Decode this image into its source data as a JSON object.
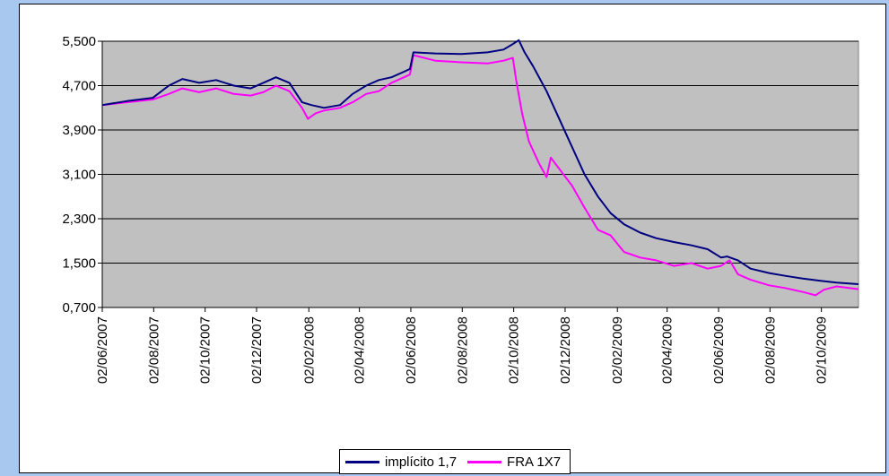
{
  "chart_data": {
    "type": "line",
    "title": "",
    "xlabel": "",
    "ylabel": "",
    "ylim": [
      0.7,
      5.5
    ],
    "yticks": [
      "5,500",
      "4,700",
      "3,900",
      "3,100",
      "2,300",
      "1,500",
      "0,700"
    ],
    "ytick_values": [
      5.5,
      4.7,
      3.9,
      3.1,
      2.3,
      1.5,
      0.7
    ],
    "xlim": [
      "2007-06-02",
      "2009-11-15"
    ],
    "xticks": [
      "02/06/2007",
      "02/08/2007",
      "02/10/2007",
      "02/12/2007",
      "02/02/2008",
      "02/04/2008",
      "02/06/2008",
      "02/08/2008",
      "02/10/2008",
      "02/12/2008",
      "02/02/2009",
      "02/04/2009",
      "02/06/2009",
      "02/08/2009",
      "02/10/2009"
    ],
    "xtick_dates": [
      "2007-06-02",
      "2007-08-02",
      "2007-10-02",
      "2007-12-02",
      "2008-02-02",
      "2008-04-02",
      "2008-06-02",
      "2008-08-02",
      "2008-10-02",
      "2008-12-02",
      "2009-02-02",
      "2009-04-02",
      "2009-06-02",
      "2009-08-02",
      "2009-10-02"
    ],
    "grid": "horizontal",
    "plot_background": "#c0c0c0",
    "legend_position": "bottom",
    "series": [
      {
        "name": "implícito 1,7",
        "color": "#000080",
        "x": [
          "2007-06-02",
          "2007-07-01",
          "2007-08-01",
          "2007-08-20",
          "2007-09-05",
          "2007-09-25",
          "2007-10-15",
          "2007-11-05",
          "2007-11-25",
          "2007-12-10",
          "2007-12-25",
          "2008-01-10",
          "2008-01-25",
          "2008-02-05",
          "2008-02-20",
          "2008-03-10",
          "2008-03-25",
          "2008-04-10",
          "2008-04-25",
          "2008-05-10",
          "2008-05-25",
          "2008-06-01",
          "2008-06-05",
          "2008-07-01",
          "2008-08-01",
          "2008-09-01",
          "2008-09-20",
          "2008-10-01",
          "2008-10-08",
          "2008-10-15",
          "2008-10-25",
          "2008-11-10",
          "2008-11-25",
          "2008-12-10",
          "2008-12-25",
          "2009-01-10",
          "2009-01-25",
          "2009-02-10",
          "2009-03-01",
          "2009-03-20",
          "2009-04-10",
          "2009-05-01",
          "2009-05-20",
          "2009-06-05",
          "2009-06-12",
          "2009-06-25",
          "2009-07-10",
          "2009-08-01",
          "2009-08-20",
          "2009-09-10",
          "2009-10-01",
          "2009-10-20",
          "2009-11-15"
        ],
        "y": [
          4.35,
          4.42,
          4.48,
          4.7,
          4.82,
          4.75,
          4.8,
          4.7,
          4.65,
          4.75,
          4.85,
          4.75,
          4.4,
          4.35,
          4.3,
          4.35,
          4.55,
          4.7,
          4.8,
          4.85,
          4.95,
          5.0,
          5.3,
          5.28,
          5.27,
          5.3,
          5.35,
          5.45,
          5.52,
          5.3,
          5.05,
          4.6,
          4.1,
          3.6,
          3.1,
          2.7,
          2.4,
          2.2,
          2.05,
          1.95,
          1.88,
          1.82,
          1.75,
          1.6,
          1.62,
          1.55,
          1.4,
          1.32,
          1.27,
          1.22,
          1.18,
          1.15,
          1.12
        ]
      },
      {
        "name": "FRA 1X7",
        "color": "#ff00ff",
        "x": [
          "2007-06-02",
          "2007-07-01",
          "2007-08-01",
          "2007-08-20",
          "2007-09-05",
          "2007-09-25",
          "2007-10-15",
          "2007-11-05",
          "2007-11-25",
          "2007-12-10",
          "2007-12-25",
          "2008-01-10",
          "2008-01-25",
          "2008-02-01",
          "2008-02-10",
          "2008-02-20",
          "2008-03-10",
          "2008-03-25",
          "2008-04-10",
          "2008-04-25",
          "2008-05-10",
          "2008-05-25",
          "2008-06-01",
          "2008-06-05",
          "2008-07-01",
          "2008-08-01",
          "2008-09-01",
          "2008-09-20",
          "2008-10-01",
          "2008-10-05",
          "2008-10-12",
          "2008-10-20",
          "2008-11-01",
          "2008-11-10",
          "2008-11-15",
          "2008-11-25",
          "2008-12-10",
          "2008-12-25",
          "2009-01-10",
          "2009-01-25",
          "2009-02-10",
          "2009-03-01",
          "2009-03-20",
          "2009-04-10",
          "2009-05-01",
          "2009-05-20",
          "2009-06-05",
          "2009-06-15",
          "2009-06-25",
          "2009-07-10",
          "2009-08-01",
          "2009-08-20",
          "2009-09-10",
          "2009-09-25",
          "2009-10-05",
          "2009-10-20",
          "2009-11-15"
        ],
        "y": [
          4.35,
          4.4,
          4.45,
          4.55,
          4.65,
          4.58,
          4.65,
          4.55,
          4.52,
          4.58,
          4.7,
          4.6,
          4.3,
          4.1,
          4.2,
          4.25,
          4.3,
          4.4,
          4.55,
          4.6,
          4.75,
          4.85,
          4.9,
          5.25,
          5.15,
          5.12,
          5.1,
          5.15,
          5.2,
          4.8,
          4.2,
          3.7,
          3.3,
          3.05,
          3.4,
          3.2,
          2.9,
          2.5,
          2.1,
          2.0,
          1.7,
          1.6,
          1.55,
          1.45,
          1.5,
          1.4,
          1.45,
          1.55,
          1.3,
          1.2,
          1.1,
          1.05,
          0.98,
          0.92,
          1.02,
          1.08,
          1.03
        ]
      }
    ]
  }
}
